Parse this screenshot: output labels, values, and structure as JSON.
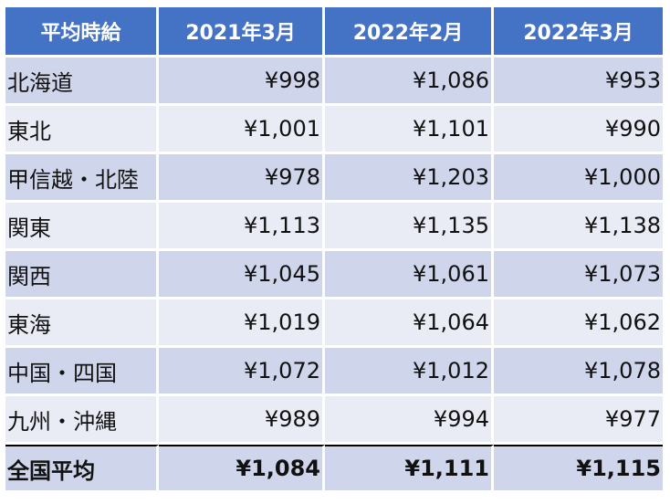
{
  "table": {
    "headers": [
      "平均時給",
      "2021年3月",
      "2022年2月",
      "2022年3月"
    ],
    "rows": [
      {
        "region": "北海道",
        "values": [
          "¥998",
          "¥1,086",
          "¥953"
        ]
      },
      {
        "region": "東北",
        "values": [
          "¥1,001",
          "¥1,101",
          "¥990"
        ]
      },
      {
        "region": "甲信越・北陸",
        "values": [
          "¥978",
          "¥1,203",
          "¥1,000"
        ]
      },
      {
        "region": "関東",
        "values": [
          "¥1,113",
          "¥1,135",
          "¥1,138"
        ]
      },
      {
        "region": "関西",
        "values": [
          "¥1,045",
          "¥1,061",
          "¥1,073"
        ]
      },
      {
        "region": "東海",
        "values": [
          "¥1,019",
          "¥1,064",
          "¥1,062"
        ]
      },
      {
        "region": "中国・四国",
        "values": [
          "¥1,072",
          "¥1,012",
          "¥1,078"
        ]
      },
      {
        "region": "九州・沖縄",
        "values": [
          "¥989",
          "¥994",
          "¥977"
        ]
      }
    ],
    "total": {
      "region": "全国平均",
      "values": [
        "¥1,084",
        "¥1,111",
        "¥1,115"
      ]
    }
  },
  "colors": {
    "header_background": "#4472c4",
    "header_text": "#ffffff",
    "row_dark": "#cfd5ea",
    "row_light": "#e9ebf5"
  }
}
